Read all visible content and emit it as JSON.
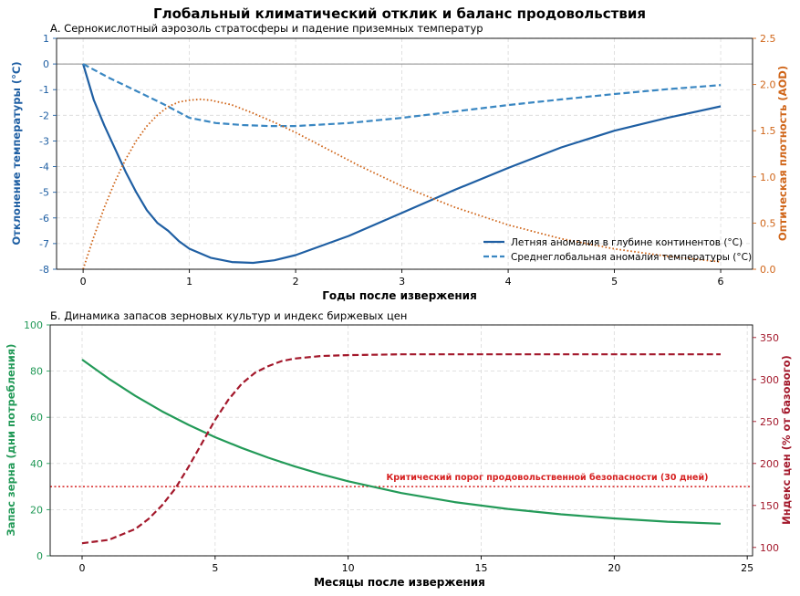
{
  "figure": {
    "title": "Глобальный климатический отклик и баланс продовольствия"
  },
  "chart_data": [
    {
      "type": "line",
      "title": "А. Сернокислотный аэрозоль стратосферы и падение приземных температур",
      "xlabel": "Годы после извержения",
      "ylabel": "Отклонение температуры (°C)",
      "ylabel_right": "Оптическая плотность (AOD)",
      "xlim": [
        -0.25,
        6.3
      ],
      "ylim": [
        -8,
        1
      ],
      "ylim_right": [
        0,
        2.5
      ],
      "x_ticks": [
        0,
        1,
        2,
        3,
        4,
        5,
        6
      ],
      "y_ticks": [
        1,
        0,
        -1,
        -2,
        -3,
        -4,
        -5,
        -6,
        -7,
        -8
      ],
      "y_ticks_right": [
        0.0,
        0.5,
        1.0,
        1.5,
        2.0,
        2.5
      ],
      "grid": true,
      "legend": "lower-right",
      "colors": {
        "left_axis": "#1f5fa3",
        "right_axis": "#d0661a"
      },
      "series": [
        {
          "name": "Летняя аномалия в глубине континентов (°C)",
          "axis": "left",
          "style": "solid",
          "color": "#1f5fa3",
          "x": [
            0,
            0.1,
            0.2,
            0.3,
            0.4,
            0.5,
            0.6,
            0.7,
            0.8,
            0.9,
            1.0,
            1.2,
            1.4,
            1.6,
            1.8,
            2.0,
            2.5,
            3.0,
            3.5,
            4.0,
            4.5,
            5.0,
            5.5,
            6.0
          ],
          "y": [
            0,
            -1.4,
            -2.4,
            -3.3,
            -4.2,
            -5.0,
            -5.7,
            -6.2,
            -6.5,
            -6.9,
            -7.2,
            -7.55,
            -7.72,
            -7.75,
            -7.65,
            -7.45,
            -6.7,
            -5.8,
            -4.9,
            -4.05,
            -3.25,
            -2.6,
            -2.1,
            -1.65
          ]
        },
        {
          "name": "Среднеглобальная аномалия температуры (°C)",
          "axis": "left",
          "style": "dashed",
          "color": "#3a87c2",
          "x": [
            0,
            0.25,
            0.5,
            0.75,
            1.0,
            1.25,
            1.5,
            1.75,
            2.0,
            2.5,
            3.0,
            3.5,
            4.0,
            4.5,
            5.0,
            5.5,
            6.0
          ],
          "y": [
            0,
            -0.55,
            -1.05,
            -1.55,
            -2.1,
            -2.3,
            -2.38,
            -2.42,
            -2.42,
            -2.3,
            -2.1,
            -1.85,
            -1.6,
            -1.38,
            -1.17,
            -0.98,
            -0.82
          ]
        },
        {
          "name": "AOD",
          "axis": "right",
          "style": "dotted",
          "color": "#d0661a",
          "x": [
            0,
            0.1,
            0.2,
            0.3,
            0.4,
            0.5,
            0.6,
            0.7,
            0.8,
            0.9,
            1.0,
            1.1,
            1.2,
            1.4,
            1.6,
            1.8,
            2.0,
            2.3,
            2.6,
            3.0,
            3.5,
            4.0,
            4.5,
            5.0,
            5.5,
            6.0
          ],
          "y": [
            0,
            0.35,
            0.67,
            0.95,
            1.19,
            1.39,
            1.55,
            1.67,
            1.76,
            1.81,
            1.83,
            1.84,
            1.83,
            1.78,
            1.69,
            1.59,
            1.48,
            1.3,
            1.12,
            0.9,
            0.67,
            0.48,
            0.33,
            0.22,
            0.14,
            0.08
          ]
        }
      ]
    },
    {
      "type": "line",
      "title": "Б. Динамика запасов зерновых культур и индекс биржевых цен",
      "xlabel": "Месяцы после извержения",
      "ylabel": "Запас зерна (дни потребления)",
      "ylabel_right": "Индекс цен (% от базового)",
      "xlim": [
        -1.2,
        25.2
      ],
      "ylim": [
        0,
        100
      ],
      "ylim_right": [
        90,
        365
      ],
      "x_ticks": [
        0,
        5,
        10,
        15,
        20,
        25
      ],
      "y_ticks": [
        0,
        20,
        40,
        60,
        80,
        100
      ],
      "y_ticks_right": [
        100,
        150,
        200,
        250,
        300,
        350
      ],
      "grid": true,
      "colors": {
        "left_axis": "#239a58",
        "right_axis": "#a3182b",
        "threshold": "#d62020"
      },
      "threshold": {
        "value": 30,
        "label": "Критический порог продовольственной безопасности (30 дней)"
      },
      "series": [
        {
          "name": "Запас зерна",
          "axis": "left",
          "style": "solid",
          "color": "#239a58",
          "x": [
            0,
            1,
            2,
            3,
            4,
            5,
            6,
            7,
            8,
            9,
            10,
            12,
            14,
            16,
            18,
            20,
            22,
            24
          ],
          "y": [
            85,
            76.7,
            69.3,
            62.6,
            56.7,
            51.4,
            46.7,
            42.5,
            38.7,
            35.3,
            32.3,
            27.2,
            23.3,
            20.3,
            18.0,
            16.2,
            14.8,
            13.9
          ]
        },
        {
          "name": "Индекс цен",
          "axis": "right",
          "style": "dashed",
          "color": "#a3182b",
          "x": [
            0,
            1,
            2,
            2.5,
            3,
            3.5,
            4,
            4.5,
            5,
            5.5,
            6,
            6.5,
            7,
            7.5,
            8,
            9,
            10,
            12,
            16,
            20,
            24
          ],
          "y": [
            105,
            109,
            122,
            134,
            150,
            170,
            196,
            224,
            252,
            276,
            295,
            308,
            316,
            322,
            325,
            328,
            329,
            330,
            330,
            330,
            330
          ]
        }
      ]
    }
  ]
}
